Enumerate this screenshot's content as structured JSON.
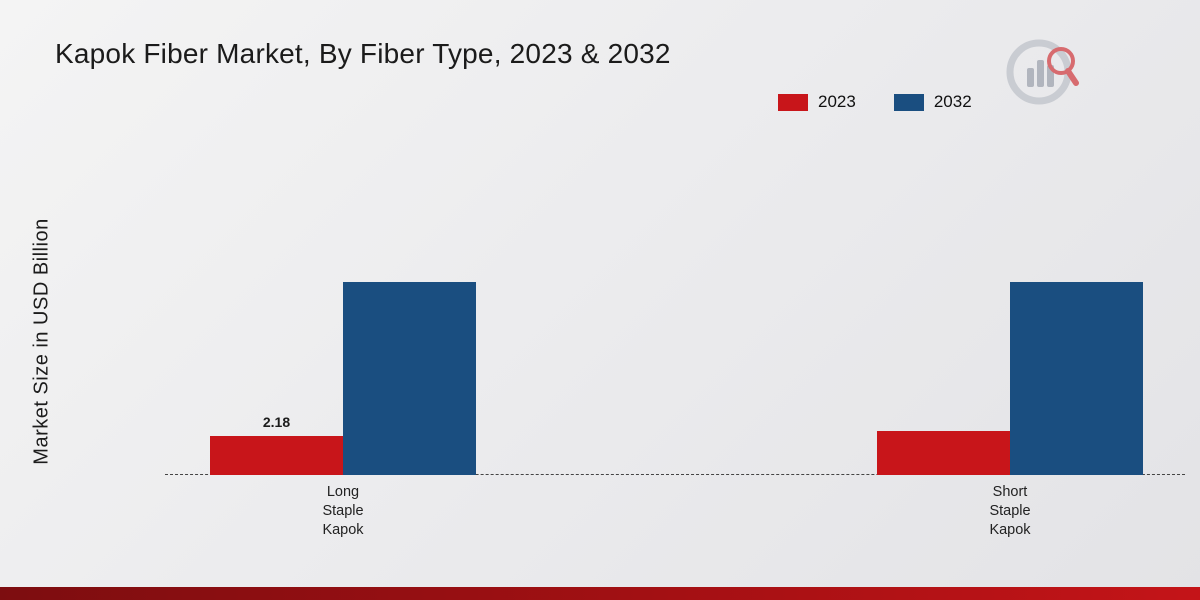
{
  "header": {
    "title": "Kapok Fiber Market, By Fiber Type, 2023 & 2032"
  },
  "axis": {
    "y_label": "Market Size in USD Billion"
  },
  "legend": {
    "items": [
      {
        "label": "2023",
        "color": "#c8151a"
      },
      {
        "label": "2032",
        "color": "#1a4e80"
      }
    ]
  },
  "chart_data": {
    "type": "bar",
    "title": "Kapok Fiber Market, By Fiber Type, 2023 & 2032",
    "ylabel": "Market Size in USD Billion",
    "categories": [
      "Long Staple Kapok",
      "Short Staple Kapok"
    ],
    "series": [
      {
        "name": "2023",
        "color": "#c8151a",
        "values": [
          2.18,
          2.45
        ]
      },
      {
        "name": "2032",
        "color": "#1a4e80",
        "values": [
          10.7,
          10.7
        ]
      }
    ],
    "data_labels": [
      {
        "series_index": 0,
        "category_index": 0,
        "text": "2.18"
      }
    ],
    "ylim": [
      0,
      12
    ],
    "grid": false,
    "legend_position": "top-right",
    "baseline_style": "dashed"
  }
}
